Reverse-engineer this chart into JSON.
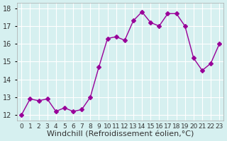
{
  "x": [
    0,
    1,
    2,
    3,
    4,
    5,
    6,
    7,
    8,
    9,
    10,
    11,
    12,
    13,
    14,
    15,
    16,
    17,
    18,
    19,
    20,
    21,
    22,
    23
  ],
  "y": [
    12.0,
    12.9,
    12.8,
    12.9,
    12.2,
    12.4,
    12.2,
    12.3,
    13.0,
    14.7,
    16.3,
    16.4,
    16.2,
    17.3,
    17.8,
    17.2,
    17.0,
    17.7,
    17.7,
    17.0,
    15.2,
    14.5,
    14.9,
    16.0
  ],
  "line_color": "#990099",
  "marker": "D",
  "marker_size": 3,
  "bg_color": "#d6f0f0",
  "grid_color": "#ffffff",
  "xlabel": "Windchill (Refroidissement éolien,°C)",
  "xlabel_fontsize": 8,
  "ylabel_ticks": [
    12,
    13,
    14,
    15,
    16,
    17,
    18
  ],
  "xlim": [
    -0.5,
    23.5
  ],
  "ylim": [
    11.7,
    18.3
  ],
  "tick_fontsize": 7
}
